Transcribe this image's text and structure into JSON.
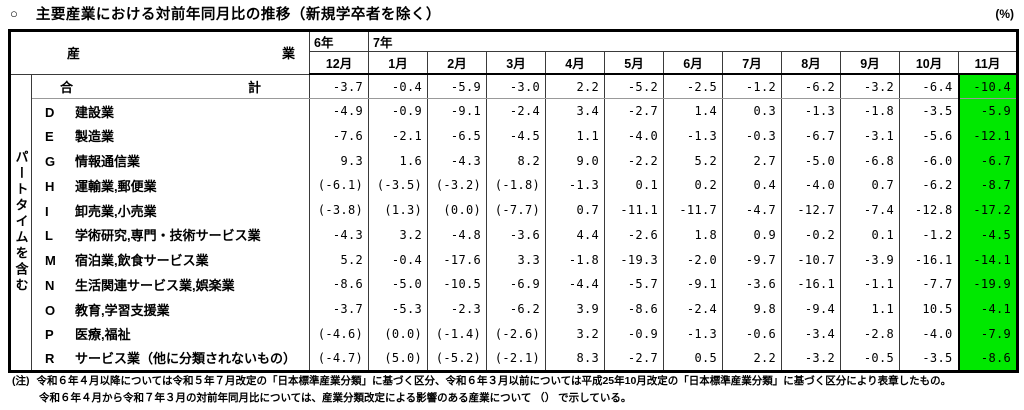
{
  "title_bullet": "○",
  "title": "主要産業における対前年同月比の推移（新規学卒者を除く）",
  "unit": "(%)",
  "table": {
    "industry_header": "産業",
    "year1": "6年",
    "year2": "7年",
    "months": [
      "12月",
      "1月",
      "2月",
      "3月",
      "4月",
      "5月",
      "6月",
      "7月",
      "8月",
      "9月",
      "10月",
      "11月"
    ],
    "row_group_label": "パートタイムを含む",
    "highlight_color": "#00e800",
    "rows": [
      {
        "code": "",
        "name": "合計",
        "values": [
          "-3.7",
          "-0.4",
          "-5.9",
          "-3.0",
          "2.2",
          "-5.2",
          "-2.5",
          "-1.2",
          "-6.2",
          "-3.2",
          "-6.4",
          "-10.4"
        ]
      },
      {
        "code": "D",
        "name": "建設業",
        "values": [
          "-4.9",
          "-0.9",
          "-9.1",
          "-2.4",
          "3.4",
          "-2.7",
          "1.4",
          "0.3",
          "-1.3",
          "-1.8",
          "-3.5",
          "-5.9"
        ]
      },
      {
        "code": "E",
        "name": "製造業",
        "values": [
          "-7.6",
          "-2.1",
          "-6.5",
          "-4.5",
          "1.1",
          "-4.0",
          "-1.3",
          "-0.3",
          "-6.7",
          "-3.1",
          "-5.6",
          "-12.1"
        ]
      },
      {
        "code": "G",
        "name": "情報通信業",
        "values": [
          "9.3",
          "1.6",
          "-4.3",
          "8.2",
          "9.0",
          "-2.2",
          "5.2",
          "2.7",
          "-5.0",
          "-6.8",
          "-6.0",
          "-6.7"
        ]
      },
      {
        "code": "H",
        "name": "運輸業,郵便業",
        "values": [
          "(-6.1)",
          "(-3.5)",
          "(-3.2)",
          "(-1.8)",
          "-1.3",
          "0.1",
          "0.2",
          "0.4",
          "-4.0",
          "0.7",
          "-6.2",
          "-8.7"
        ]
      },
      {
        "code": "I",
        "name": "卸売業,小売業",
        "values": [
          "(-3.8)",
          "(1.3)",
          "(0.0)",
          "(-7.7)",
          "0.7",
          "-11.1",
          "-11.7",
          "-4.7",
          "-12.7",
          "-7.4",
          "-12.8",
          "-17.2"
        ]
      },
      {
        "code": "L",
        "name": "学術研究,専門・技術サービス業",
        "values": [
          "-4.3",
          "3.2",
          "-4.8",
          "-3.6",
          "4.4",
          "-2.6",
          "1.8",
          "0.9",
          "-0.2",
          "0.1",
          "-1.2",
          "-4.5"
        ]
      },
      {
        "code": "M",
        "name": "宿泊業,飲食サービス業",
        "values": [
          "5.2",
          "-0.4",
          "-17.6",
          "3.3",
          "-1.8",
          "-19.3",
          "-2.0",
          "-9.7",
          "-10.7",
          "-3.9",
          "-16.1",
          "-14.1"
        ]
      },
      {
        "code": "N",
        "name": "生活関連サービス業,娯楽業",
        "values": [
          "-8.6",
          "-5.0",
          "-10.5",
          "-6.9",
          "-4.4",
          "-5.7",
          "-9.1",
          "-3.6",
          "-16.1",
          "-1.1",
          "-7.7",
          "-19.9"
        ]
      },
      {
        "code": "O",
        "name": "教育,学習支援業",
        "values": [
          "-3.7",
          "-5.3",
          "-2.3",
          "-6.2",
          "3.9",
          "-8.6",
          "-2.4",
          "9.8",
          "-9.4",
          "1.1",
          "10.5",
          "-4.1"
        ]
      },
      {
        "code": "P",
        "name": "医療,福祉",
        "values": [
          "(-4.6)",
          "(0.0)",
          "(-1.4)",
          "(-2.6)",
          "3.2",
          "-0.9",
          "-1.3",
          "-0.6",
          "-3.4",
          "-2.8",
          "-4.0",
          "-7.9"
        ]
      },
      {
        "code": "R",
        "name": "サービス業（他に分類されないもの）",
        "values": [
          "(-4.7)",
          "(5.0)",
          "(-5.2)",
          "(-2.1)",
          "8.3",
          "-2.7",
          "0.5",
          "2.2",
          "-3.2",
          "-0.5",
          "-3.5",
          "-8.6"
        ]
      }
    ]
  },
  "notes": {
    "label": "(注)",
    "line1": "令和６年４月以降については令和５年７月改定の「日本標準産業分類」に基づく区分、令和６年３月以前については平成25年10月改定の「日本標準産業分類」に基づく区分により表章したもの。",
    "line2": "令和６年４月から令和７年３月の対前年同月比については、産業分類改定による影響のある産業について （） で示している。"
  }
}
